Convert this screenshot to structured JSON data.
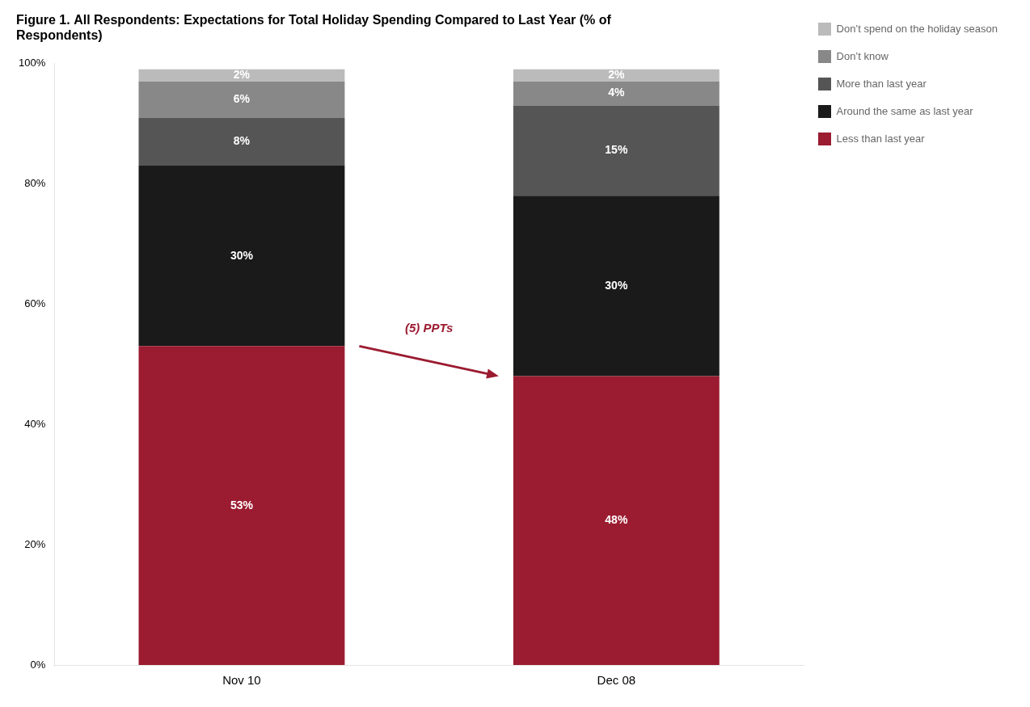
{
  "chart_data": {
    "type": "bar",
    "title": "Figure 1. All Respondents: Expectations for Total Holiday Spending Compared to Last Year (% of\nRespondents)",
    "categories": [
      "Nov 10",
      "Dec 08"
    ],
    "stacked": true,
    "data_labels": true,
    "grid": false,
    "legend": "right",
    "series": [
      {
        "name": "Less than last year",
        "color": "#9B1B30",
        "values": [
          53,
          48
        ],
        "value_labels": [
          "53%",
          "48%"
        ]
      },
      {
        "name": "Around the same as last year",
        "color": "#1A1A1A",
        "values": [
          30,
          30
        ],
        "value_labels": [
          "30%",
          "30%"
        ]
      },
      {
        "name": "More than last year",
        "color": "#555555",
        "values": [
          8,
          15
        ],
        "value_labels": [
          "8%",
          "15%"
        ]
      },
      {
        "name": "Don’t know",
        "color": "#888888",
        "values": [
          6,
          4
        ],
        "value_labels": [
          "6%",
          "4%"
        ]
      },
      {
        "name": "Don’t spend on the holiday season",
        "color": "#BBBBBB",
        "values": [
          2,
          2
        ],
        "value_labels": [
          "2%",
          "2%"
        ]
      }
    ],
    "annotations": [
      {
        "text": "(5) PPTs",
        "color": "#9B1B30"
      }
    ],
    "ylim": [
      0,
      100
    ],
    "yticks": [
      {
        "value": 0,
        "label": "0%"
      },
      {
        "value": 20,
        "label": "20%"
      },
      {
        "value": 40,
        "label": "40%"
      },
      {
        "value": 60,
        "label": "60%"
      },
      {
        "value": 80,
        "label": "80%"
      },
      {
        "value": 100,
        "label": "100%"
      }
    ]
  }
}
